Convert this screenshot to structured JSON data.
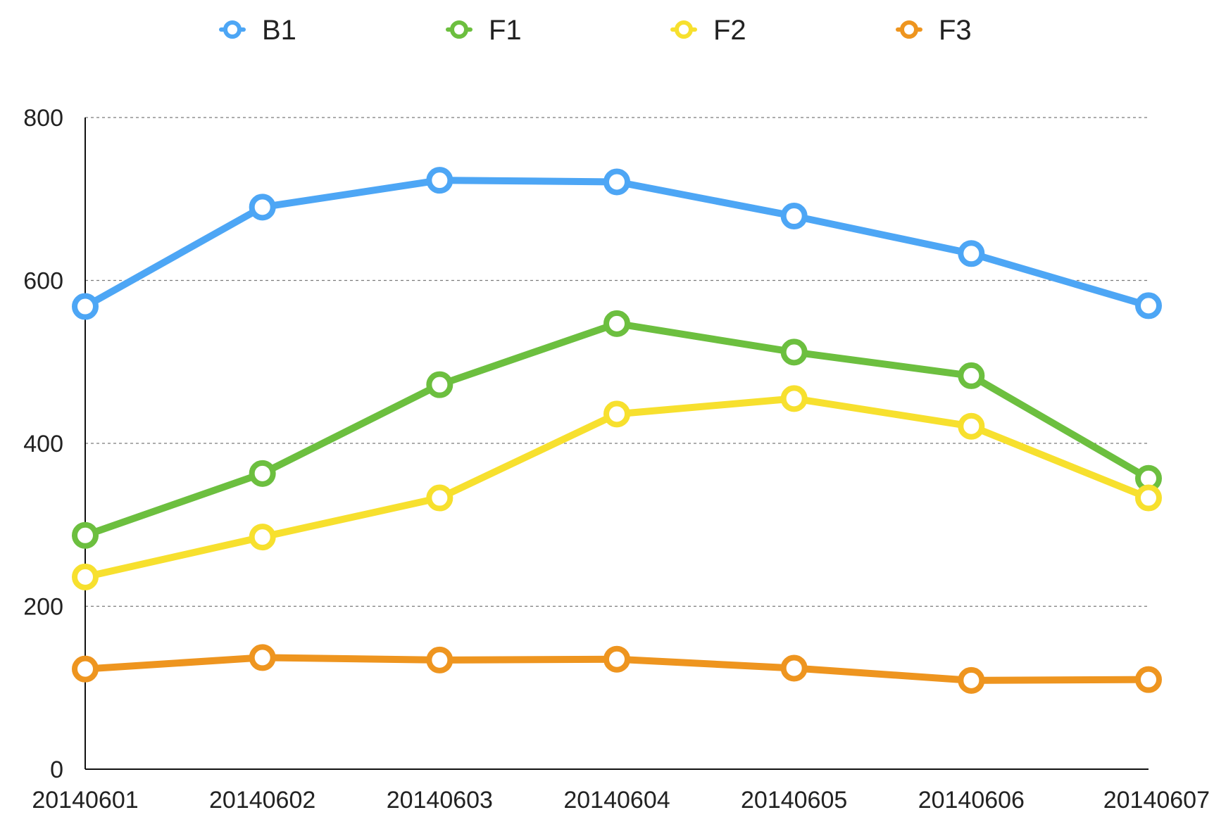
{
  "chart_data": {
    "type": "line",
    "title": "",
    "xlabel": "",
    "ylabel": "",
    "categories": [
      "20140601",
      "20140602",
      "20140603",
      "20140604",
      "20140605",
      "20140606",
      "20140607"
    ],
    "ylim": [
      0,
      800
    ],
    "yticks": [
      "0",
      "200",
      "400",
      "600",
      "800"
    ],
    "grid": "horizontal dashed",
    "legend_position": "top",
    "series": [
      {
        "name": "B1",
        "color": "#4da6f5",
        "values": [
          568,
          690,
          723,
          721,
          679,
          633,
          569
        ]
      },
      {
        "name": "F1",
        "color": "#6cbf3f",
        "values": [
          287,
          363,
          472,
          547,
          512,
          483,
          357
        ]
      },
      {
        "name": "F2",
        "color": "#f7e02e",
        "values": [
          236,
          285,
          333,
          436,
          455,
          421,
          333
        ]
      },
      {
        "name": "F3",
        "color": "#ee951f",
        "values": [
          123,
          137,
          134,
          135,
          124,
          109,
          110
        ]
      }
    ]
  }
}
